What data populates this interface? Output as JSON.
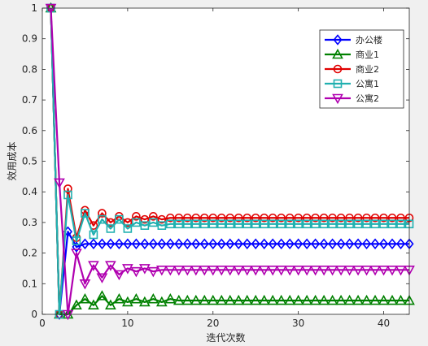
{
  "chart_data": {
    "type": "line",
    "xlabel": "迭代次数",
    "ylabel": "效用成本",
    "xlim": [
      0,
      43
    ],
    "ylim": [
      0,
      1
    ],
    "xticks": [
      "0",
      "10",
      "20",
      "30",
      "40"
    ],
    "yticks": [
      "0",
      "0.1",
      "0.2",
      "0.3",
      "0.4",
      "0.5",
      "0.6",
      "0.7",
      "0.8",
      "0.9",
      "1"
    ],
    "grid": false,
    "legend_position": "top-right",
    "x": [
      1,
      2,
      3,
      4,
      5,
      6,
      7,
      8,
      9,
      10,
      11,
      12,
      13,
      14,
      15,
      16,
      17,
      18,
      19,
      20,
      21,
      22,
      23,
      24,
      25,
      26,
      27,
      28,
      29,
      30,
      31,
      32,
      33,
      34,
      35,
      36,
      37,
      38,
      39,
      40,
      41,
      42,
      43
    ],
    "series": [
      {
        "name": "办公楼",
        "color": "#0000ff",
        "marker": "diamond",
        "values": [
          1.0,
          0.0,
          0.27,
          0.22,
          0.23,
          0.23,
          0.23,
          0.23,
          0.23,
          0.23,
          0.23,
          0.23,
          0.23,
          0.23,
          0.23,
          0.23,
          0.23,
          0.23,
          0.23,
          0.23,
          0.23,
          0.23,
          0.23,
          0.23,
          0.23,
          0.23,
          0.23,
          0.23,
          0.23,
          0.23,
          0.23,
          0.23,
          0.23,
          0.23,
          0.23,
          0.23,
          0.23,
          0.23,
          0.23,
          0.23,
          0.23,
          0.23,
          0.23
        ]
      },
      {
        "name": "商业1",
        "color": "#008000",
        "marker": "triangle-up",
        "values": [
          1.0,
          0.0,
          0.0,
          0.03,
          0.05,
          0.03,
          0.06,
          0.03,
          0.05,
          0.04,
          0.05,
          0.04,
          0.05,
          0.04,
          0.05,
          0.045,
          0.045,
          0.045,
          0.045,
          0.045,
          0.045,
          0.045,
          0.045,
          0.045,
          0.045,
          0.045,
          0.045,
          0.045,
          0.045,
          0.045,
          0.045,
          0.045,
          0.045,
          0.045,
          0.045,
          0.045,
          0.045,
          0.045,
          0.045,
          0.045,
          0.045,
          0.045,
          0.045
        ]
      },
      {
        "name": "商业2",
        "color": "#e00000",
        "marker": "circle",
        "values": [
          1.0,
          0.0,
          0.41,
          0.25,
          0.34,
          0.29,
          0.33,
          0.3,
          0.32,
          0.3,
          0.32,
          0.31,
          0.32,
          0.31,
          0.315,
          0.315,
          0.315,
          0.315,
          0.315,
          0.315,
          0.315,
          0.315,
          0.315,
          0.315,
          0.315,
          0.315,
          0.315,
          0.315,
          0.315,
          0.315,
          0.315,
          0.315,
          0.315,
          0.315,
          0.315,
          0.315,
          0.315,
          0.315,
          0.315,
          0.315,
          0.315,
          0.315,
          0.315
        ]
      },
      {
        "name": "公寓1",
        "color": "#20b0b0",
        "marker": "square",
        "values": [
          1.0,
          0.0,
          0.39,
          0.24,
          0.33,
          0.26,
          0.31,
          0.28,
          0.31,
          0.28,
          0.3,
          0.29,
          0.3,
          0.29,
          0.295,
          0.295,
          0.295,
          0.295,
          0.295,
          0.295,
          0.295,
          0.295,
          0.295,
          0.295,
          0.295,
          0.295,
          0.295,
          0.295,
          0.295,
          0.295,
          0.295,
          0.295,
          0.295,
          0.295,
          0.295,
          0.295,
          0.295,
          0.295,
          0.295,
          0.295,
          0.295,
          0.295,
          0.295
        ]
      },
      {
        "name": "公寓2",
        "color": "#b000b0",
        "marker": "triangle-down",
        "values": [
          1.0,
          0.43,
          0.0,
          0.2,
          0.1,
          0.16,
          0.12,
          0.16,
          0.13,
          0.15,
          0.14,
          0.15,
          0.14,
          0.145,
          0.145,
          0.145,
          0.145,
          0.145,
          0.145,
          0.145,
          0.145,
          0.145,
          0.145,
          0.145,
          0.145,
          0.145,
          0.145,
          0.145,
          0.145,
          0.145,
          0.145,
          0.145,
          0.145,
          0.145,
          0.145,
          0.145,
          0.145,
          0.145,
          0.145,
          0.145,
          0.145,
          0.145,
          0.145
        ]
      }
    ]
  }
}
